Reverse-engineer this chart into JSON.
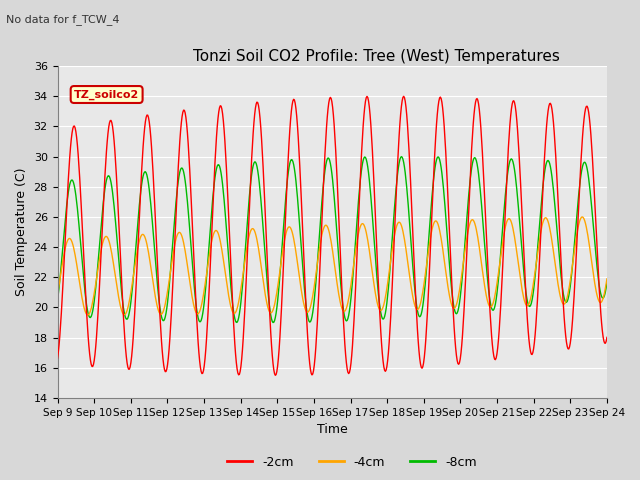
{
  "title": "Tonzi Soil CO2 Profile: Tree (West) Temperatures",
  "subtitle": "No data for f_TCW_4",
  "xlabel": "Time",
  "ylabel": "Soil Temperature (C)",
  "ylim": [
    14,
    36
  ],
  "yticks": [
    14,
    16,
    18,
    20,
    22,
    24,
    26,
    28,
    30,
    32,
    34,
    36
  ],
  "x_tick_labels": [
    "Sep 9",
    "Sep 10",
    "Sep 11",
    "Sep 12",
    "Sep 13",
    "Sep 14",
    "Sep 15",
    "Sep 16",
    "Sep 17",
    "Sep 18",
    "Sep 19",
    "Sep 20",
    "Sep 21",
    "Sep 22",
    "Sep 23",
    "Sep 24"
  ],
  "legend_label": "TZ_soilco2",
  "line_labels": [
    "-2cm",
    "-4cm",
    "-8cm"
  ],
  "line_colors": [
    "#ff0000",
    "#ffa500",
    "#00bb00"
  ],
  "plot_bg_color": "#e8e8e8",
  "fig_bg_color": "#d8d8d8",
  "grid_color": "#ffffff",
  "title_fontsize": 11,
  "axis_fontsize": 9,
  "tick_fontsize": 8
}
